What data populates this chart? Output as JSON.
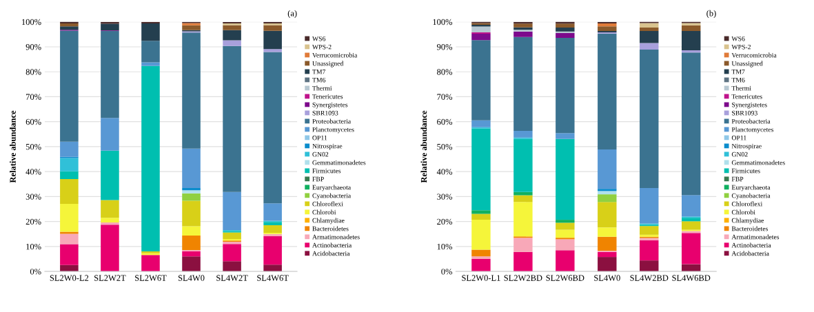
{
  "chart_data": [
    {
      "type": "bar",
      "stacked": true,
      "title": "(a)",
      "ylabel": "Relative abundance",
      "categories": [
        "SL2W0-L2",
        "SL2W2T",
        "SL2W6T",
        "SL4W0",
        "SL4W2T",
        "SL4W6T"
      ],
      "ylim": [
        0,
        100
      ],
      "yticks": [
        {
          "value": 0,
          "label": "0%"
        },
        {
          "value": 10,
          "label": "10%"
        },
        {
          "value": 20,
          "label": "20%"
        },
        {
          "value": 30,
          "label": "30%"
        },
        {
          "value": 40,
          "label": "40%"
        },
        {
          "value": 50,
          "label": "50%"
        },
        {
          "value": 60,
          "label": "60%"
        },
        {
          "value": 70,
          "label": "70%"
        },
        {
          "value": 80,
          "label": "80%"
        },
        {
          "value": 90,
          "label": "90%"
        },
        {
          "value": 100,
          "label": "100%"
        }
      ],
      "grid": "y",
      "legend": "right",
      "series": [
        {
          "name": "Acidobacteria",
          "color": "#8b1040",
          "values": [
            2.6,
            null,
            null,
            6.0,
            4.1,
            2.7
          ]
        },
        {
          "name": "Actinobacteria",
          "color": "#e8006e",
          "values": [
            8.3,
            18.7,
            6.6,
            2.1,
            6.9,
            11.4
          ]
        },
        {
          "name": "Armatimonadetes",
          "color": "#f8a8b8",
          "values": [
            4.2,
            0.9,
            null,
            0.5,
            0.9,
            0.9
          ]
        },
        {
          "name": "Bacteroidetes",
          "color": "#f08400",
          "values": [
            0.8,
            null,
            null,
            5.8,
            0.5,
            null
          ]
        },
        {
          "name": "Chlamydiae",
          "color": "#ffb000",
          "values": [
            null,
            null,
            null,
            null,
            null,
            null
          ]
        },
        {
          "name": "Chlorobi",
          "color": "#f5f53a",
          "values": [
            11.2,
            1.9,
            0.7,
            3.7,
            0.6,
            0.5
          ]
        },
        {
          "name": "Chloroflexi",
          "color": "#d8d018",
          "values": [
            9.9,
            7.1,
            0.7,
            10.2,
            2.6,
            3.0
          ]
        },
        {
          "name": "Cyanobacteria",
          "color": "#90d040",
          "values": [
            null,
            null,
            null,
            3.0,
            null,
            null
          ]
        },
        {
          "name": "Euryarchaeota",
          "color": "#10b060",
          "values": [
            null,
            null,
            null,
            null,
            null,
            null
          ]
        },
        {
          "name": "FBP",
          "color": "#3a7a50",
          "values": [
            null,
            null,
            null,
            null,
            null,
            null
          ]
        },
        {
          "name": "Firmicutes",
          "color": "#00bfb0",
          "values": [
            3.1,
            19.8,
            74.3,
            null,
            0.5,
            1.3
          ]
        },
        {
          "name": "Gemmatimonadetes",
          "color": "#b0e0ec",
          "values": [
            null,
            null,
            null,
            1.2,
            null,
            null
          ]
        },
        {
          "name": "GN02",
          "color": "#30c0d8",
          "values": [
            5.3,
            null,
            null,
            null,
            0.5,
            0.5
          ]
        },
        {
          "name": "Nitrospirae",
          "color": "#0a8ccc",
          "values": [
            0.5,
            null,
            null,
            0.9,
            null,
            null
          ]
        },
        {
          "name": "OP11",
          "color": "#90c8e8",
          "values": [
            null,
            null,
            null,
            null,
            null,
            null
          ]
        },
        {
          "name": "Planctomycetes",
          "color": "#5898d4",
          "values": [
            6.1,
            13.1,
            1.5,
            15.8,
            15.2,
            7.0
          ]
        },
        {
          "name": "Proteobacteria",
          "color": "#3b7390",
          "values": [
            44.5,
            34.9,
            8.6,
            46.5,
            58.5,
            60.6
          ]
        },
        {
          "name": "SBR1093",
          "color": "#a8a0dc",
          "values": [
            null,
            null,
            null,
            0.5,
            2.3,
            1.2
          ]
        },
        {
          "name": "Synergistetes",
          "color": "#7d0a8c",
          "values": [
            0.3,
            0.2,
            null,
            null,
            null,
            null
          ]
        },
        {
          "name": "Tenericutes",
          "color": "#c0148c",
          "values": [
            null,
            null,
            null,
            null,
            null,
            null
          ]
        },
        {
          "name": "Thermi",
          "color": "#b8c8d2",
          "values": [
            null,
            null,
            null,
            null,
            null,
            null
          ]
        },
        {
          "name": "TM6",
          "color": "#5f7483",
          "values": [
            null,
            null,
            null,
            null,
            null,
            null
          ]
        },
        {
          "name": "TM7",
          "color": "#243f4f",
          "values": [
            1.4,
            2.6,
            7.0,
            0.5,
            4.1,
            7.3
          ]
        },
        {
          "name": "Unassigned",
          "color": "#8b5a2b",
          "values": [
            1.2,
            null,
            null,
            1.9,
            2.0,
            2.3
          ]
        },
        {
          "name": "Verrucomicrobia",
          "color": "#e07b39",
          "values": [
            null,
            null,
            null,
            0.9,
            null,
            null
          ]
        },
        {
          "name": "WPS-2",
          "color": "#d9c38e",
          "values": [
            null,
            null,
            null,
            null,
            0.7,
            0.7
          ]
        },
        {
          "name": "WS6",
          "color": "#4a2a2a",
          "values": [
            0.7,
            0.8,
            0.6,
            0.5,
            0.5,
            0.6
          ]
        }
      ]
    },
    {
      "type": "bar",
      "stacked": true,
      "title": "(b)",
      "ylabel": "Relative abundance",
      "categories": [
        "SL2W0-L1",
        "SL2W2BD",
        "SL2W6BD",
        "SL4W0",
        "SL4W2BD",
        "SL4W6BD"
      ],
      "ylim": [
        0,
        100
      ],
      "yticks": [
        {
          "value": 0,
          "label": "0%"
        },
        {
          "value": 10,
          "label": "10%"
        },
        {
          "value": 20,
          "label": "20%"
        },
        {
          "value": 30,
          "label": "30%"
        },
        {
          "value": 40,
          "label": "40%"
        },
        {
          "value": 50,
          "label": "50%"
        },
        {
          "value": 60,
          "label": "60%"
        },
        {
          "value": 70,
          "label": "70%"
        },
        {
          "value": 80,
          "label": "80%"
        },
        {
          "value": 90,
          "label": "90%"
        },
        {
          "value": 100,
          "label": "100%"
        }
      ],
      "grid": "y",
      "legend": "right",
      "series": [
        {
          "name": "Acidobacteria",
          "color": "#8b1040",
          "values": [
            null,
            null,
            null,
            5.8,
            4.4,
            2.9
          ]
        },
        {
          "name": "Actinobacteria",
          "color": "#e8006e",
          "values": [
            5.0,
            7.8,
            8.5,
            2.0,
            8.1,
            12.5
          ]
        },
        {
          "name": "Armatimonadetes",
          "color": "#f8a8b8",
          "values": [
            1.0,
            5.7,
            4.4,
            0.5,
            0.9,
            0.8
          ]
        },
        {
          "name": "Bacteroidetes",
          "color": "#f08400",
          "values": [
            2.7,
            0.5,
            0.6,
            5.6,
            0.5,
            null
          ]
        },
        {
          "name": "Chlamydiae",
          "color": "#ffb000",
          "values": [
            null,
            null,
            null,
            null,
            null,
            null
          ]
        },
        {
          "name": "Chlorobi",
          "color": "#f5f53a",
          "values": [
            12.0,
            13.8,
            3.2,
            3.7,
            0.8,
            0.5
          ]
        },
        {
          "name": "Chloroflexi",
          "color": "#d8d018",
          "values": [
            2.4,
            2.7,
            2.8,
            10.2,
            3.5,
            3.4
          ]
        },
        {
          "name": "Cyanobacteria",
          "color": "#90d040",
          "values": [
            null,
            null,
            null,
            3.1,
            null,
            null
          ]
        },
        {
          "name": "Euryarchaeota",
          "color": "#10b060",
          "values": [
            1.4,
            1.3,
            1.2,
            null,
            null,
            null
          ]
        },
        {
          "name": "FBP",
          "color": "#3a7a50",
          "values": [
            null,
            null,
            null,
            null,
            null,
            null
          ]
        },
        {
          "name": "Firmicutes",
          "color": "#00bfb0",
          "values": [
            32.8,
            21.3,
            32.4,
            null,
            0.5,
            1.4
          ]
        },
        {
          "name": "Gemmatimonadetes",
          "color": "#b0e0ec",
          "values": [
            null,
            null,
            null,
            1.3,
            null,
            null
          ]
        },
        {
          "name": "GN02",
          "color": "#30c0d8",
          "values": [
            0.5,
            0.5,
            null,
            null,
            0.5,
            0.5
          ]
        },
        {
          "name": "Nitrospirae",
          "color": "#0a8ccc",
          "values": [
            null,
            null,
            null,
            0.9,
            null,
            null
          ]
        },
        {
          "name": "OP11",
          "color": "#90c8e8",
          "values": [
            null,
            null,
            null,
            null,
            null,
            null
          ]
        },
        {
          "name": "Planctomycetes",
          "color": "#5898d4",
          "values": [
            2.7,
            2.7,
            2.3,
            15.8,
            14.2,
            8.6
          ]
        },
        {
          "name": "Proteobacteria",
          "color": "#3b7390",
          "values": [
            32.2,
            37.6,
            38.2,
            46.4,
            55.5,
            57.1
          ]
        },
        {
          "name": "SBR1093",
          "color": "#a8a0dc",
          "values": [
            null,
            null,
            null,
            0.5,
            2.6,
            0.9
          ]
        },
        {
          "name": "Synergistetes",
          "color": "#7d0a8c",
          "values": [
            2.5,
            2.2,
            1.9,
            null,
            null,
            null
          ]
        },
        {
          "name": "Tenericutes",
          "color": "#c0148c",
          "values": [
            0.6,
            null,
            null,
            null,
            null,
            null
          ]
        },
        {
          "name": "Thermi",
          "color": "#b8c8d2",
          "values": [
            2.3,
            0.7,
            0.6,
            null,
            null,
            null
          ]
        },
        {
          "name": "TM6",
          "color": "#5f7483",
          "values": [
            null,
            null,
            null,
            null,
            null,
            null
          ]
        },
        {
          "name": "TM7",
          "color": "#243f4f",
          "values": [
            0.7,
            1.0,
            1.6,
            0.5,
            4.8,
            7.7
          ]
        },
        {
          "name": "Unassigned",
          "color": "#8b5a2b",
          "values": [
            0.7,
            1.5,
            1.6,
            1.9,
            1.4,
            2.3
          ]
        },
        {
          "name": "Verrucomicrobia",
          "color": "#e07b39",
          "values": [
            null,
            null,
            null,
            1.2,
            null,
            null
          ]
        },
        {
          "name": "WPS-2",
          "color": "#d9c38e",
          "values": [
            null,
            null,
            null,
            null,
            1.8,
            0.9
          ]
        },
        {
          "name": "WS6",
          "color": "#4a2a2a",
          "values": [
            0.6,
            0.7,
            0.8,
            0.6,
            0.6,
            0.6
          ]
        }
      ]
    }
  ]
}
